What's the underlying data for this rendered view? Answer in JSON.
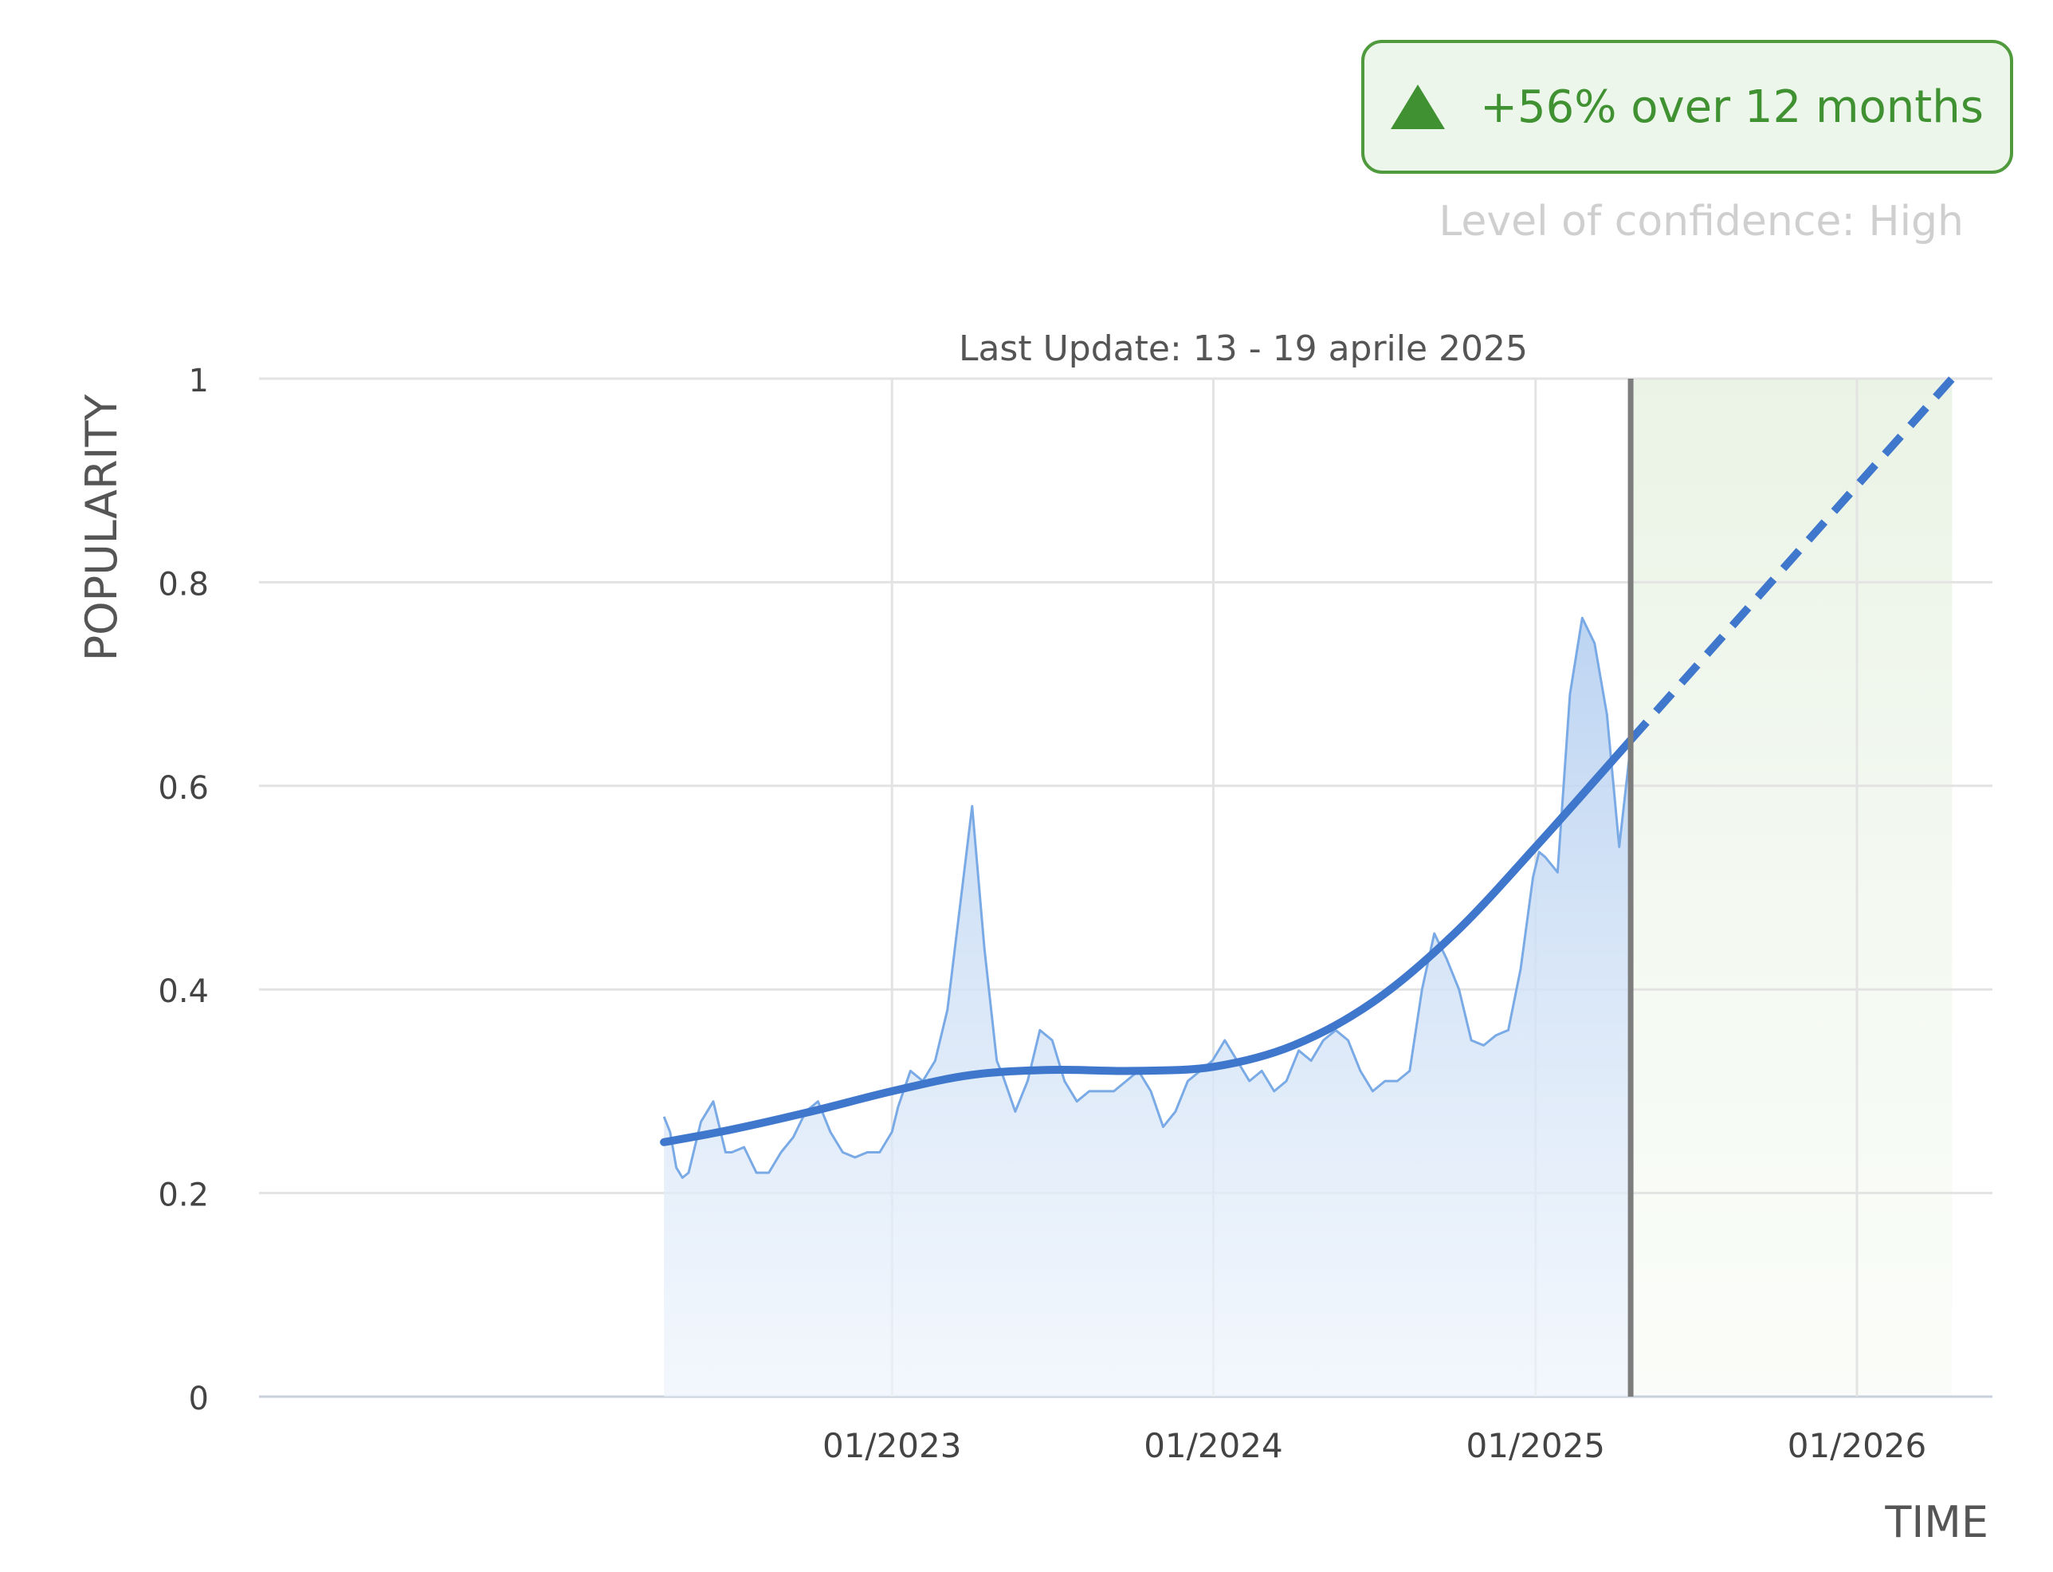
{
  "badge": {
    "text": "+56% over 12 months",
    "icon": "triangle-up-icon",
    "color": "#3f9132",
    "background": "#edf6ea"
  },
  "confidence": "Level of confidence: High",
  "chart_data": {
    "type": "area",
    "title": "Last Update: 13 - 19 aprile 2025",
    "xlabel": "TIME",
    "ylabel": "POPULARITY",
    "ylim": [
      0,
      1
    ],
    "y_ticks": [
      "0",
      "0.2",
      "0.4",
      "0.6",
      "0.8",
      "1"
    ],
    "x_ticks": [
      "01/2023",
      "01/2024",
      "01/2025",
      "01/2026"
    ],
    "grid": true,
    "last_update": "2025-04-19",
    "series": [
      {
        "style": "area-line",
        "color": "#7aaae6",
        "x": [
          "2022-04-17",
          "2022-04-24",
          "2022-05-01",
          "2022-05-08",
          "2022-05-15",
          "2022-05-29",
          "2022-06-12",
          "2022-06-26",
          "2022-07-03",
          "2022-07-17",
          "2022-07-31",
          "2022-08-14",
          "2022-08-28",
          "2022-09-11",
          "2022-09-25",
          "2022-10-09",
          "2022-10-23",
          "2022-11-06",
          "2022-11-20",
          "2022-12-04",
          "2022-12-18",
          "2023-01-01",
          "2023-01-08",
          "2023-01-22",
          "2023-02-05",
          "2023-02-19",
          "2023-03-05",
          "2023-03-19",
          "2023-04-02",
          "2023-04-16",
          "2023-04-30",
          "2023-05-07",
          "2023-05-21",
          "2023-06-04",
          "2023-06-18",
          "2023-07-02",
          "2023-07-16",
          "2023-07-30",
          "2023-08-13",
          "2023-08-27",
          "2023-09-10",
          "2023-09-24",
          "2023-10-08",
          "2023-10-22",
          "2023-11-05",
          "2023-11-19",
          "2023-12-03",
          "2023-12-17",
          "2023-12-31",
          "2024-01-14",
          "2024-01-28",
          "2024-02-11",
          "2024-02-25",
          "2024-03-10",
          "2024-03-24",
          "2024-04-07",
          "2024-04-21",
          "2024-05-05",
          "2024-05-19",
          "2024-06-02",
          "2024-06-16",
          "2024-06-30",
          "2024-07-14",
          "2024-07-28",
          "2024-08-11",
          "2024-08-25",
          "2024-09-08",
          "2024-09-22",
          "2024-10-06",
          "2024-10-20",
          "2024-11-03",
          "2024-11-17",
          "2024-12-01",
          "2024-12-15",
          "2024-12-29",
          "2025-01-05",
          "2025-01-12",
          "2025-01-26",
          "2025-02-09",
          "2025-02-23",
          "2025-03-09",
          "2025-03-23",
          "2025-04-06",
          "2025-04-19"
        ],
        "values": [
          0.275,
          0.26,
          0.225,
          0.215,
          0.22,
          0.27,
          0.29,
          0.24,
          0.24,
          0.245,
          0.22,
          0.22,
          0.24,
          0.255,
          0.28,
          0.29,
          0.26,
          0.24,
          0.235,
          0.24,
          0.24,
          0.26,
          0.285,
          0.32,
          0.31,
          0.33,
          0.38,
          0.48,
          0.58,
          0.44,
          0.33,
          0.315,
          0.28,
          0.31,
          0.36,
          0.35,
          0.31,
          0.29,
          0.3,
          0.3,
          0.3,
          0.31,
          0.32,
          0.3,
          0.265,
          0.28,
          0.31,
          0.32,
          0.33,
          0.35,
          0.33,
          0.31,
          0.32,
          0.3,
          0.31,
          0.34,
          0.33,
          0.35,
          0.36,
          0.35,
          0.32,
          0.3,
          0.31,
          0.31,
          0.32,
          0.4,
          0.455,
          0.43,
          0.4,
          0.35,
          0.345,
          0.355,
          0.36,
          0.42,
          0.51,
          0.535,
          0.53,
          0.515,
          0.69,
          0.765,
          0.74,
          0.67,
          0.54,
          0.64
        ]
      },
      {
        "style": "trend-line",
        "color": "#3f77cc",
        "x": [
          "2022-04-17",
          "2022-07-01",
          "2022-10-01",
          "2023-01-01",
          "2023-04-01",
          "2023-07-01",
          "2023-10-01",
          "2024-01-01",
          "2024-04-01",
          "2024-07-01",
          "2024-10-01",
          "2025-01-01",
          "2025-04-19"
        ],
        "values": [
          0.25,
          0.262,
          0.28,
          0.3,
          0.316,
          0.321,
          0.32,
          0.324,
          0.345,
          0.388,
          0.455,
          0.54,
          0.645
        ]
      },
      {
        "style": "forecast-line",
        "color": "#3f77cc",
        "dashed": true,
        "x": [
          "2025-04-19",
          "2026-04-19"
        ],
        "values": [
          0.645,
          1.0
        ]
      }
    ],
    "forecast_region": [
      "2025-04-19",
      "2026-04-19"
    ]
  }
}
